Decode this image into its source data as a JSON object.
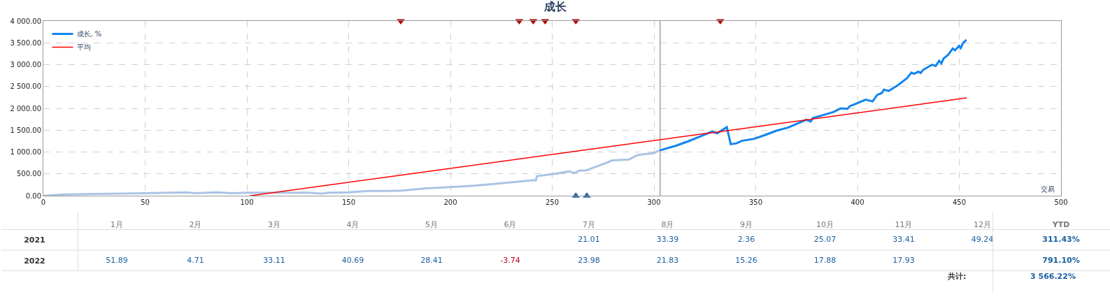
{
  "chart_data": [
    {
      "type": "line",
      "title": "成长",
      "xlabel": "交易",
      "xlim": [
        0,
        500
      ],
      "xticks": [
        0,
        50,
        100,
        150,
        200,
        250,
        300,
        350,
        400,
        450,
        500
      ],
      "ylim": [
        0,
        4000
      ],
      "yticks": [
        {
          "value": 0,
          "label": "0.00"
        },
        {
          "value": 500,
          "label": "500.00"
        },
        {
          "value": 1000,
          "label": "1 000.00"
        },
        {
          "value": 1500,
          "label": "1 500.00"
        },
        {
          "value": 2000,
          "label": "2 000.00"
        },
        {
          "value": 2500,
          "label": "2 500.00"
        },
        {
          "value": 3000,
          "label": "3 000.00"
        },
        {
          "value": 3500,
          "label": "3 500.00"
        },
        {
          "value": 4000,
          "label": "4 000.00"
        }
      ],
      "grid": true,
      "legend": "top left",
      "marker": "none",
      "line_style": "solid",
      "ref_lines": [
        {
          "axis": "x",
          "value": 303,
          "label": null,
          "color": "#a0a0a0"
        }
      ],
      "series": [
        {
          "color": "#a9c4e4",
          "x": [
            0,
            10,
            20,
            50,
            70,
            75,
            85,
            93,
            100,
            130,
            137,
            140,
            150,
            160,
            170,
            176,
            188,
            199.6,
            211.4,
            223.2,
            234.9,
            240.7,
            241.9,
            242.5,
            252.5,
            258.3,
            260.7,
            263.6,
            266.6,
            270,
            275.9,
            279.5,
            287.7,
            291.8,
            294.7,
            299.4,
            302.9
          ],
          "values": [
            0,
            30,
            40,
            60,
            80,
            60,
            80,
            60,
            70,
            70,
            50,
            70,
            80,
            110,
            110,
            120,
            170,
            200,
            230,
            280,
            330,
            360,
            350,
            450,
            510,
            560,
            520,
            580,
            580,
            640,
            740,
            810,
            830,
            930,
            950,
            970,
            1040
          ]
        },
        {
          "name": "成长, %",
          "color": "#1185f0",
          "x": [
            302.9,
            311.1,
            317,
            322.8,
            328.7,
            331,
            335.8,
            337.7,
            340.5,
            343.3,
            348.9,
            354.5,
            360.2,
            365.8,
            371.4,
            374.8,
            377,
            378.1,
            382.6,
            388.3,
            391.7,
            395,
            396.2,
            399.5,
            404,
            407.4,
            409.7,
            411.9,
            413,
            415.3,
            419.8,
            424.3,
            426.5,
            427.7,
            429.9,
            431,
            432.2,
            436.7,
            438.4,
            440.1,
            441.2,
            442.3,
            444.6,
            446.8,
            447.9,
            449.9,
            450.7,
            451.8,
            453.5
          ],
          "values": [
            1040,
            1150,
            1250,
            1360,
            1470,
            1430,
            1570,
            1180,
            1200,
            1260,
            1300,
            1390,
            1490,
            1560,
            1670,
            1740,
            1700,
            1780,
            1840,
            1920,
            2000,
            1990,
            2050,
            2110,
            2200,
            2160,
            2310,
            2350,
            2430,
            2400,
            2530,
            2690,
            2820,
            2790,
            2840,
            2810,
            2880,
            3000,
            2970,
            3090,
            3030,
            3140,
            3230,
            3370,
            3330,
            3430,
            3380,
            3490,
            3570
          ]
        },
        {
          "name": "平均",
          "color": "#ff0000",
          "x": [
            101.4,
            453.7
          ],
          "values": [
            0,
            2240
          ]
        },
        {
          "type": "scatter",
          "marker": "triangle",
          "color": "#b00000",
          "x": [
            175.6,
            233.8,
            240.7,
            246.5,
            261.6,
            332.6
          ],
          "values": [
            4000,
            4000,
            4000,
            4000,
            4000,
            4000
          ]
        },
        {
          "type": "scatter",
          "marker": "triangle",
          "color": "#1f5f9f",
          "x": [
            261.6,
            267
          ],
          "values": [
            0,
            0
          ]
        }
      ]
    },
    {
      "type": "heatmap",
      "categories": [
        "1月",
        "2月",
        "3月",
        "4月",
        "5月",
        "6月",
        "7月",
        "8月",
        "9月",
        "10月",
        "11月",
        "12月",
        "YTD"
      ],
      "y_categories": [
        "2021",
        "2022"
      ],
      "cells": [
        [
          null,
          null,
          null,
          null,
          null,
          null,
          21.01,
          33.39,
          2.36,
          25.07,
          33.41,
          49.24,
          311.43
        ],
        [
          51.89,
          4.71,
          33.11,
          40.69,
          28.41,
          -3.74,
          23.98,
          21.83,
          15.26,
          17.88,
          17.93,
          null,
          791.1
        ]
      ],
      "cell_labels": [
        [
          null,
          null,
          null,
          null,
          null,
          null,
          "21.01",
          "33.39",
          "2.36",
          "25.07",
          "33.41",
          "49.24",
          "311.43%"
        ],
        [
          "51.89",
          "4.71",
          "33.11",
          "40.69",
          "28.41",
          "-3.74",
          "23.98",
          "21.83",
          "15.26",
          "17.88",
          "17.93",
          null,
          "791.10%"
        ]
      ],
      "annotations": [
        "共计:",
        "3 566.22%"
      ]
    }
  ]
}
